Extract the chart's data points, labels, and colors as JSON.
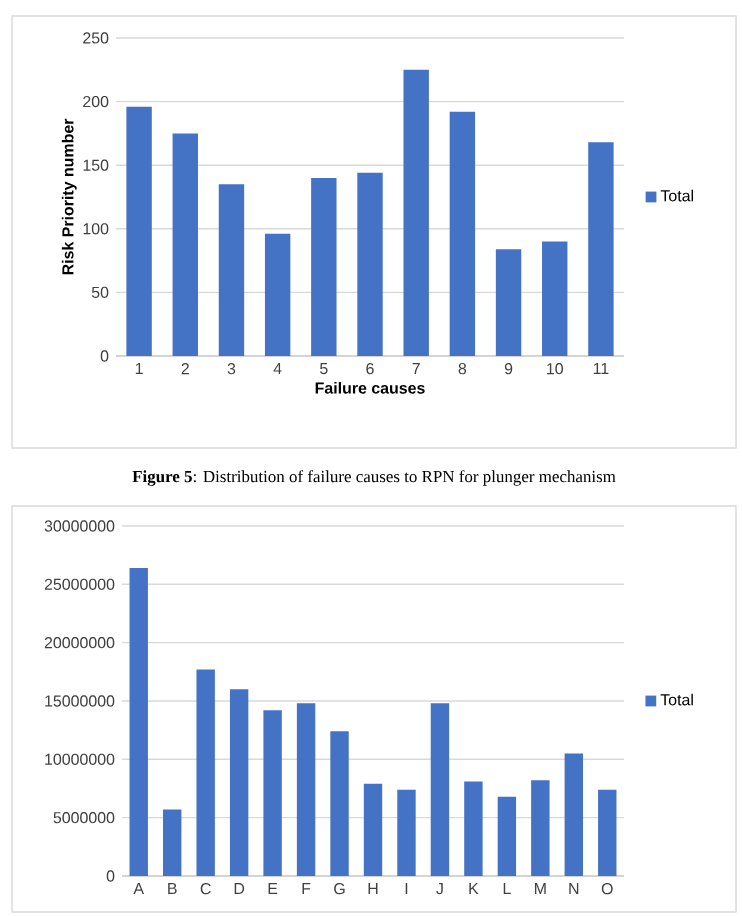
{
  "chart_data": [
    {
      "type": "bar",
      "xlabel": "Failure causes",
      "ylabel": "Risk Priority number",
      "categories": [
        "1",
        "2",
        "3",
        "4",
        "5",
        "6",
        "7",
        "8",
        "9",
        "10",
        "11"
      ],
      "series": [
        {
          "name": "Total",
          "color": "#4472c4",
          "values": [
            196,
            175,
            135,
            96,
            140,
            144,
            225,
            192,
            84,
            90,
            168
          ]
        }
      ],
      "ylim": [
        0,
        250
      ],
      "yticks": [
        0,
        50,
        100,
        150,
        200,
        250
      ],
      "grid": "y",
      "legend": "right",
      "annotations": [
        "**Figure 5**: Distribution of failure causes to RPN for plunger mechanism"
      ]
    },
    {
      "type": "bar",
      "categories": [
        "A",
        "B",
        "C",
        "D",
        "E",
        "F",
        "G",
        "H",
        "I",
        "J",
        "K",
        "L",
        "M",
        "N",
        "O"
      ],
      "series": [
        {
          "name": "Total",
          "color": "#4472c4",
          "values": [
            26400000,
            5700000,
            17700000,
            16000000,
            14200000,
            14800000,
            12400000,
            7900000,
            7400000,
            14800000,
            8100000,
            6800000,
            8200000,
            10500000,
            7400000
          ]
        }
      ],
      "ylim": [
        0,
        30000000
      ],
      "yticks": [
        0,
        5000000,
        10000000,
        15000000,
        20000000,
        25000000,
        30000000
      ],
      "grid": "y",
      "legend": "right"
    }
  ]
}
